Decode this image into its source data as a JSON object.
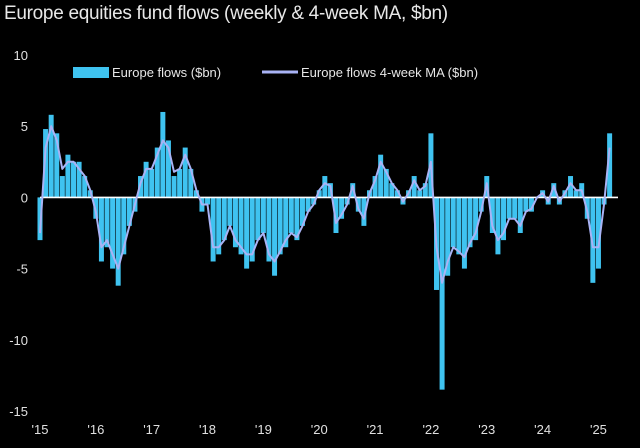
{
  "title": "Europe equities fund flows (weekly & 4-week MA, $bn)",
  "colors": {
    "background": "#000000",
    "bars": "#3fc3f0",
    "ma_line": "#a9b3f5",
    "zero_line": "#ffffff",
    "text": "#e0e0e0"
  },
  "chart_data": {
    "type": "bar",
    "title": "Europe equities fund flows (weekly & 4-week MA, $bn)",
    "xlabel": "",
    "ylabel": "",
    "ylim": [
      -15,
      10
    ],
    "xlim": [
      2015.0,
      2025.35
    ],
    "x_tick_labels": [
      "'15",
      "'16",
      "'17",
      "'18",
      "'19",
      "'20",
      "'21",
      "'22",
      "'23",
      "'24",
      "'25"
    ],
    "x_tick_positions": [
      2015,
      2016,
      2017,
      2018,
      2019,
      2020,
      2021,
      2022,
      2023,
      2024,
      2025
    ],
    "y_ticks": [
      10,
      5,
      0,
      -5,
      -10,
      -15
    ],
    "grid": false,
    "legend_position": "top",
    "series": [
      {
        "name": "Europe flows ($bn)",
        "type": "bar",
        "color": "#3fc3f0",
        "x": [
          2015.0,
          2015.1,
          2015.2,
          2015.3,
          2015.4,
          2015.5,
          2015.6,
          2015.7,
          2015.8,
          2015.9,
          2016.0,
          2016.1,
          2016.2,
          2016.3,
          2016.4,
          2016.5,
          2016.6,
          2016.7,
          2016.8,
          2016.9,
          2017.0,
          2017.1,
          2017.2,
          2017.3,
          2017.4,
          2017.5,
          2017.6,
          2017.7,
          2017.8,
          2017.9,
          2018.0,
          2018.1,
          2018.2,
          2018.3,
          2018.4,
          2018.5,
          2018.6,
          2018.7,
          2018.8,
          2018.9,
          2019.0,
          2019.1,
          2019.2,
          2019.3,
          2019.4,
          2019.5,
          2019.6,
          2019.7,
          2019.8,
          2019.9,
          2020.0,
          2020.1,
          2020.2,
          2020.3,
          2020.4,
          2020.5,
          2020.6,
          2020.7,
          2020.8,
          2020.9,
          2021.0,
          2021.1,
          2021.2,
          2021.3,
          2021.4,
          2021.5,
          2021.6,
          2021.7,
          2021.8,
          2021.9,
          2022.0,
          2022.1,
          2022.2,
          2022.3,
          2022.4,
          2022.5,
          2022.6,
          2022.7,
          2022.8,
          2022.9,
          2023.0,
          2023.1,
          2023.2,
          2023.3,
          2023.4,
          2023.5,
          2023.6,
          2023.7,
          2023.8,
          2023.9,
          2024.0,
          2024.1,
          2024.2,
          2024.3,
          2024.4,
          2024.5,
          2024.6,
          2024.7,
          2024.8,
          2024.9,
          2025.0,
          2025.1,
          2025.2
        ],
        "values": [
          -3.0,
          4.8,
          5.8,
          4.5,
          1.5,
          3.0,
          2.5,
          2.5,
          1.5,
          0.5,
          -1.5,
          -4.5,
          -3.5,
          -5.0,
          -6.2,
          -4.0,
          -2.0,
          -1.0,
          1.5,
          2.5,
          2.0,
          3.5,
          6.0,
          4.0,
          1.5,
          2.0,
          3.5,
          2.0,
          0.5,
          -1.0,
          -0.5,
          -4.5,
          -4.0,
          -3.0,
          -2.0,
          -3.5,
          -4.0,
          -5.0,
          -4.5,
          -3.0,
          -2.5,
          -4.5,
          -5.5,
          -4.0,
          -3.5,
          -2.5,
          -3.0,
          -2.0,
          -1.0,
          -0.5,
          0.5,
          1.5,
          1.0,
          -2.5,
          -1.5,
          -0.5,
          1.0,
          -1.0,
          -2.0,
          0.5,
          1.5,
          3.0,
          2.0,
          1.0,
          0.5,
          -0.5,
          0.5,
          1.5,
          0.5,
          1.0,
          4.5,
          -6.5,
          -13.5,
          -5.5,
          -3.5,
          -4.0,
          -5.0,
          -3.5,
          -3.0,
          -1.0,
          1.5,
          -2.5,
          -4.0,
          -3.0,
          -1.5,
          -1.5,
          -2.5,
          -1.0,
          -1.0,
          0.0,
          0.5,
          -0.5,
          1.0,
          -0.5,
          0.5,
          1.5,
          0.5,
          1.0,
          -1.5,
          -6.0,
          -5.0,
          -0.5,
          4.5
        ]
      },
      {
        "name": "Europe flows 4-week MA ($bn)",
        "type": "line",
        "color": "#a9b3f5",
        "x": [
          2015.0,
          2015.1,
          2015.2,
          2015.3,
          2015.4,
          2015.5,
          2015.6,
          2015.7,
          2015.8,
          2015.9,
          2016.0,
          2016.1,
          2016.2,
          2016.3,
          2016.4,
          2016.5,
          2016.6,
          2016.7,
          2016.8,
          2016.9,
          2017.0,
          2017.1,
          2017.2,
          2017.3,
          2017.4,
          2017.5,
          2017.6,
          2017.7,
          2017.8,
          2017.9,
          2018.0,
          2018.1,
          2018.2,
          2018.3,
          2018.4,
          2018.5,
          2018.6,
          2018.7,
          2018.8,
          2018.9,
          2019.0,
          2019.1,
          2019.2,
          2019.3,
          2019.4,
          2019.5,
          2019.6,
          2019.7,
          2019.8,
          2019.9,
          2020.0,
          2020.1,
          2020.2,
          2020.3,
          2020.4,
          2020.5,
          2020.6,
          2020.7,
          2020.8,
          2020.9,
          2021.0,
          2021.1,
          2021.2,
          2021.3,
          2021.4,
          2021.5,
          2021.6,
          2021.7,
          2021.8,
          2021.9,
          2022.0,
          2022.1,
          2022.2,
          2022.3,
          2022.4,
          2022.5,
          2022.6,
          2022.7,
          2022.8,
          2022.9,
          2023.0,
          2023.1,
          2023.2,
          2023.3,
          2023.4,
          2023.5,
          2023.6,
          2023.7,
          2023.8,
          2023.9,
          2024.0,
          2024.1,
          2024.2,
          2024.3,
          2024.4,
          2024.5,
          2024.6,
          2024.7,
          2024.8,
          2024.9,
          2025.0,
          2025.1,
          2025.2
        ],
        "values": [
          -2.5,
          3.5,
          5.0,
          4.0,
          2.0,
          2.5,
          2.5,
          2.0,
          1.5,
          0.5,
          -1.0,
          -3.5,
          -3.0,
          -4.0,
          -5.0,
          -3.5,
          -2.0,
          -0.5,
          1.0,
          2.0,
          2.0,
          3.0,
          4.0,
          3.5,
          1.8,
          2.0,
          3.0,
          2.0,
          0.5,
          -0.5,
          -0.5,
          -3.5,
          -3.5,
          -3.0,
          -2.0,
          -3.0,
          -3.5,
          -4.0,
          -4.0,
          -3.0,
          -2.5,
          -4.0,
          -4.5,
          -3.8,
          -3.0,
          -2.5,
          -2.8,
          -2.0,
          -1.0,
          -0.5,
          0.5,
          1.0,
          0.8,
          -1.8,
          -1.2,
          -0.5,
          0.8,
          -0.8,
          -1.5,
          0.3,
          1.2,
          2.5,
          1.8,
          1.0,
          0.5,
          -0.3,
          0.3,
          1.2,
          0.5,
          0.8,
          2.5,
          -3.5,
          -6.0,
          -4.5,
          -3.5,
          -3.8,
          -4.2,
          -3.2,
          -2.5,
          -1.0,
          1.0,
          -2.0,
          -3.0,
          -2.5,
          -1.5,
          -1.5,
          -2.0,
          -1.0,
          -0.8,
          0.0,
          0.3,
          -0.3,
          0.8,
          -0.3,
          0.3,
          1.0,
          0.5,
          0.5,
          -1.0,
          -3.5,
          -3.5,
          -0.5,
          3.5
        ]
      }
    ]
  }
}
